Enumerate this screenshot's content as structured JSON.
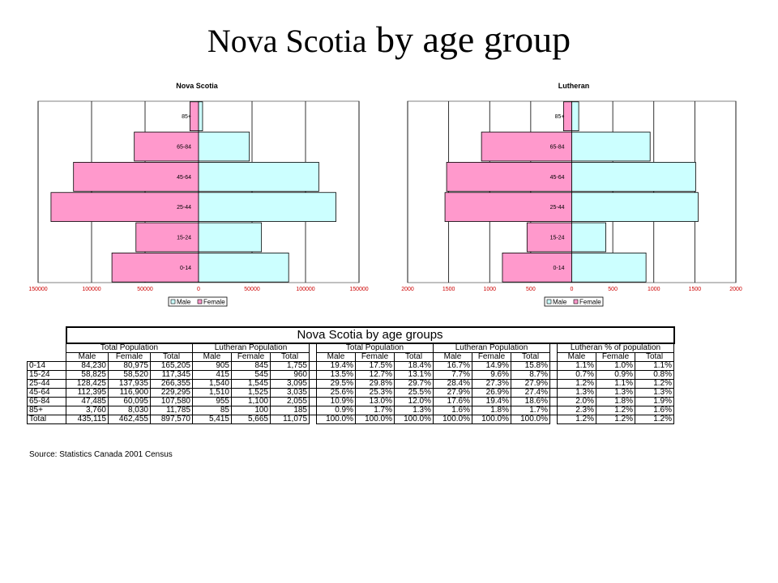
{
  "slide": {
    "title_main": "Nova Scotia",
    "title_rest": " by age group"
  },
  "chart_data": [
    {
      "type": "bar",
      "orientation": "horizontal-pyramid",
      "title": "Nova Scotia",
      "categories": [
        "0-14",
        "15-24",
        "25-44",
        "45-64",
        "65-84",
        "85+"
      ],
      "series": [
        {
          "name": "Male",
          "values": [
            84230,
            58825,
            128425,
            112395,
            47485,
            3760
          ],
          "color": "#ccffff",
          "side": "right"
        },
        {
          "name": "Female",
          "values": [
            80975,
            58520,
            137935,
            116900,
            60095,
            8030
          ],
          "color": "#ff99cc",
          "side": "left"
        }
      ],
      "xlim": [
        -150000,
        150000
      ],
      "xticks": [
        "150000",
        "100000",
        "50000",
        "0",
        "50000",
        "100000",
        "150000"
      ],
      "legend": "bottom"
    },
    {
      "type": "bar",
      "orientation": "horizontal-pyramid",
      "title": "Lutheran",
      "categories": [
        "0-14",
        "15-24",
        "25-44",
        "45-64",
        "65-84",
        "85+"
      ],
      "series": [
        {
          "name": "Male",
          "values": [
            905,
            415,
            1540,
            1510,
            955,
            85
          ],
          "color": "#ccffff",
          "side": "right"
        },
        {
          "name": "Female",
          "values": [
            845,
            545,
            1545,
            1525,
            1100,
            100
          ],
          "color": "#ff99cc",
          "side": "left"
        }
      ],
      "xlim": [
        -2000,
        2000
      ],
      "xticks": [
        "2000",
        "1500",
        "1000",
        "500",
        "0",
        "500",
        "1000",
        "1500",
        "2000"
      ],
      "legend": "bottom"
    }
  ],
  "table": {
    "title": "Nova Scotia by age groups",
    "group_headers": [
      "Total Population",
      "Lutheran Population",
      "Total Population",
      "Lutheran Population",
      "Lutheran % of population"
    ],
    "sub_headers": [
      "Male",
      "Female",
      "Total"
    ],
    "rows": [
      {
        "label": "0-14",
        "cells": [
          "84,230",
          "80,975",
          "165,205",
          "905",
          "845",
          "1,755",
          "19.4%",
          "17.5%",
          "18.4%",
          "16.7%",
          "14.9%",
          "15.8%",
          "1.1%",
          "1.0%",
          "1.1%"
        ]
      },
      {
        "label": "15-24",
        "cells": [
          "58,825",
          "58,520",
          "117,345",
          "415",
          "545",
          "960",
          "13.5%",
          "12.7%",
          "13.1%",
          "7.7%",
          "9.6%",
          "8.7%",
          "0.7%",
          "0.9%",
          "0.8%"
        ]
      },
      {
        "label": "25-44",
        "cells": [
          "128,425",
          "137,935",
          "266,355",
          "1,540",
          "1,545",
          "3,095",
          "29.5%",
          "29.8%",
          "29.7%",
          "28.4%",
          "27.3%",
          "27.9%",
          "1.2%",
          "1.1%",
          "1.2%"
        ]
      },
      {
        "label": "45-64",
        "cells": [
          "112,395",
          "116,900",
          "229,295",
          "1,510",
          "1,525",
          "3,035",
          "25.6%",
          "25.3%",
          "25.5%",
          "27.9%",
          "26.9%",
          "27.4%",
          "1.3%",
          "1.3%",
          "1.3%"
        ]
      },
      {
        "label": "65-84",
        "cells": [
          "47,485",
          "60,095",
          "107,580",
          "955",
          "1,100",
          "2,055",
          "10.9%",
          "13.0%",
          "12.0%",
          "17.6%",
          "19.4%",
          "18.6%",
          "2.0%",
          "1.8%",
          "1.9%"
        ]
      },
      {
        "label": "85+",
        "cells": [
          "3,760",
          "8,030",
          "11,785",
          "85",
          "100",
          "185",
          "0.9%",
          "1.7%",
          "1.3%",
          "1.6%",
          "1.8%",
          "1.7%",
          "2.3%",
          "1.2%",
          "1.6%"
        ]
      },
      {
        "label": "Total",
        "cells": [
          "435,115",
          "462,455",
          "897,570",
          "5,415",
          "5,665",
          "11,075",
          "100.0%",
          "100.0%",
          "100.0%",
          "100.0%",
          "100.0%",
          "100.0%",
          "1.2%",
          "1.2%",
          "1.2%"
        ]
      }
    ],
    "source": "Source: Statistics Canada 2001 Census"
  }
}
